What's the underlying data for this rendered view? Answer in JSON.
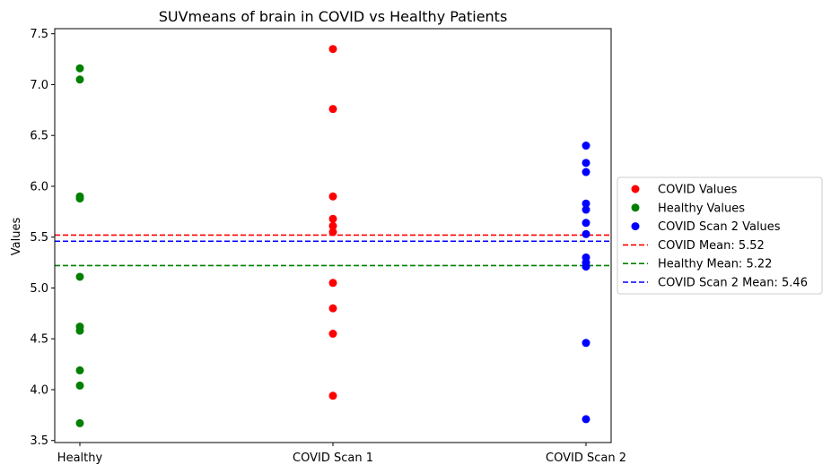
{
  "chart_data": {
    "type": "scatter",
    "title": "SUVmeans of brain in COVID vs Healthy Patients",
    "xlabel": "",
    "ylabel": "Values",
    "categories": [
      "Healthy",
      "COVID Scan 1",
      "COVID Scan 2"
    ],
    "ylim": [
      3.48,
      7.55
    ],
    "yticks": [
      "3.5",
      "4.0",
      "4.5",
      "5.0",
      "5.5",
      "6.0",
      "6.5",
      "7.0",
      "7.5"
    ],
    "grid": false,
    "legend_position": "outside right",
    "series": [
      {
        "name": "COVID Values",
        "color": "#ff0000",
        "category": "COVID Scan 1",
        "values": [
          7.35,
          6.76,
          5.9,
          5.68,
          5.61,
          5.55,
          5.05,
          4.8,
          4.55,
          3.94
        ]
      },
      {
        "name": "Healthy Values",
        "color": "#008000",
        "category": "Healthy",
        "values": [
          7.16,
          7.05,
          5.9,
          5.88,
          5.11,
          4.62,
          4.58,
          4.19,
          4.04,
          3.67
        ]
      },
      {
        "name": "COVID Scan 2 Values",
        "color": "#0000ff",
        "category": "COVID Scan 2",
        "values": [
          6.4,
          6.23,
          6.14,
          5.83,
          5.77,
          5.64,
          5.53,
          5.3,
          5.25,
          5.21,
          4.46,
          3.71
        ]
      }
    ],
    "mean_lines": [
      {
        "name": "COVID Mean: 5.52",
        "value": 5.52,
        "color": "#ff0000"
      },
      {
        "name": "Healthy Mean: 5.22",
        "value": 5.22,
        "color": "#008000"
      },
      {
        "name": "COVID Scan 2 Mean: 5.46",
        "value": 5.46,
        "color": "#0000ff"
      }
    ]
  }
}
